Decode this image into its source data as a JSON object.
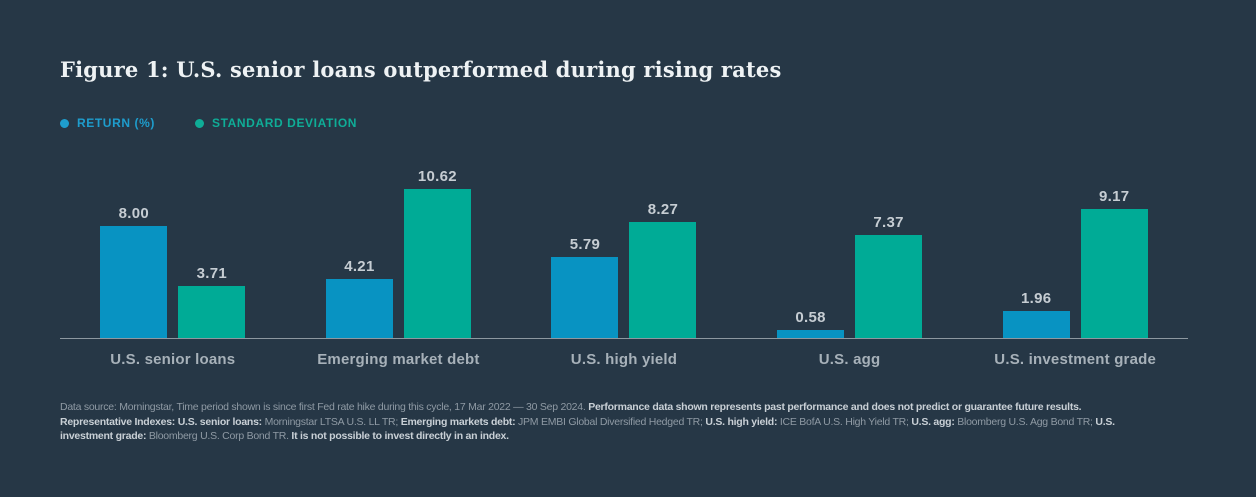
{
  "title": "Figure 1: U.S. senior loans outperformed during rising rates",
  "legend": {
    "items": [
      {
        "label": "RETURN (%)",
        "color": "#1E9DCD"
      },
      {
        "label": "STANDARD DEVIATION",
        "color": "#0FAD97"
      }
    ]
  },
  "chart_data": {
    "type": "bar",
    "categories": [
      "U.S. senior loans",
      "Emerging market debt",
      "U.S. high yield",
      "U.S. agg",
      "U.S. investment grade"
    ],
    "series": [
      {
        "name": "Return (%)",
        "color": "#0893C2",
        "values": [
          8.0,
          4.21,
          5.79,
          0.58,
          1.96
        ]
      },
      {
        "name": "Standard deviation",
        "color": "#00AB96",
        "values": [
          3.71,
          10.62,
          8.27,
          7.37,
          9.17
        ]
      }
    ],
    "title": "Figure 1: U.S. senior loans outperformed during rising rates",
    "xlabel": "",
    "ylabel": "",
    "ylim": [
      0,
      13.6
    ],
    "grid": false,
    "legend_position": "top-left",
    "value_label_format": "2-decimals",
    "axis_line_color": "#8D98A0"
  },
  "footnote": {
    "lines": [
      [
        {
          "text": "Data source: Morningstar, Time period shown is since first Fed rate hike during this cycle, 17 Mar 2022 — 30 Sep 2024. ",
          "bold": false
        },
        {
          "text": "Performance data shown represents past performance and does not predict or guarantee future results.",
          "bold": true
        }
      ],
      [
        {
          "text": "Representative Indexes: U.S. senior loans:",
          "bold": true
        },
        {
          "text": " Morningstar LTSA U.S. LL TR; ",
          "bold": false
        },
        {
          "text": "Emerging markets debt:",
          "bold": true
        },
        {
          "text": " JPM EMBI Global Diversified Hedged TR; ",
          "bold": false
        },
        {
          "text": "U.S. high yield:",
          "bold": true
        },
        {
          "text": " ICE BofA U.S. High Yield TR; ",
          "bold": false
        },
        {
          "text": "U.S. agg:",
          "bold": true
        },
        {
          "text": " Bloomberg U.S. Agg Bond TR; ",
          "bold": false
        },
        {
          "text": "U.S.",
          "bold": true
        }
      ],
      [
        {
          "text": "investment grade:",
          "bold": true
        },
        {
          "text": " Bloomberg U.S. Corp Bond TR. ",
          "bold": false
        },
        {
          "text": "It is not possible to invest directly in an index.",
          "bold": true
        }
      ]
    ]
  },
  "colors": {
    "background": "#263746",
    "title_text": "#EEF2F4",
    "value_label": "#C6CDD3",
    "category_label": "#A7B1B9",
    "footnote_normal": "#8F9AA4",
    "footnote_bold": "#C9D0D6"
  }
}
